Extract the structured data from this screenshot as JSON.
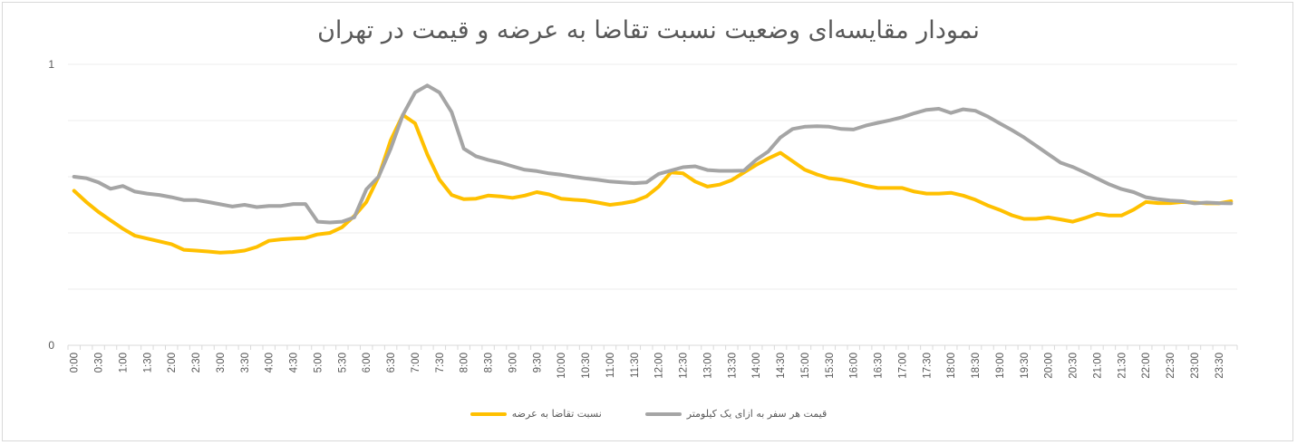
{
  "chart_data": {
    "type": "line",
    "title": "نمودار مقایسه‌ای وضعیت نسبت تقاضا به عرضه و قیمت در تهران",
    "xlabel": "",
    "ylabel": "",
    "ylim": [
      0,
      1
    ],
    "yticks": [
      0,
      1
    ],
    "ytick_labels": [
      "0",
      "1"
    ],
    "gridlines_y": [
      0,
      0.2,
      0.4,
      0.6,
      0.8,
      1
    ],
    "grid": true,
    "legend_position": "bottom",
    "x_label_every": 2,
    "x": [
      "0:00",
      "0:15",
      "0:30",
      "0:45",
      "1:00",
      "1:15",
      "1:30",
      "1:45",
      "2:00",
      "2:15",
      "2:30",
      "2:45",
      "3:00",
      "3:15",
      "3:30",
      "3:45",
      "4:00",
      "4:15",
      "4:30",
      "4:45",
      "5:00",
      "5:15",
      "5:30",
      "5:45",
      "6:00",
      "6:15",
      "6:30",
      "6:45",
      "7:00",
      "7:15",
      "7:30",
      "7:45",
      "8:00",
      "8:15",
      "8:30",
      "8:45",
      "9:00",
      "9:15",
      "9:30",
      "9:45",
      "10:00",
      "10:15",
      "10:30",
      "10:45",
      "11:00",
      "11:15",
      "11:30",
      "11:45",
      "12:00",
      "12:15",
      "12:30",
      "12:45",
      "13:00",
      "13:15",
      "13:30",
      "13:45",
      "14:00",
      "14:15",
      "14:30",
      "14:45",
      "15:00",
      "15:15",
      "15:30",
      "15:45",
      "16:00",
      "16:15",
      "16:30",
      "16:45",
      "17:00",
      "17:15",
      "17:30",
      "17:45",
      "18:00",
      "18:15",
      "18:30",
      "18:45",
      "19:00",
      "19:15",
      "19:30",
      "19:45",
      "20:00",
      "20:15",
      "20:30",
      "20:45",
      "21:00",
      "21:15",
      "21:30",
      "21:45",
      "22:00",
      "22:15",
      "22:30",
      "22:45",
      "23:00",
      "23:15",
      "23:30",
      "23:45"
    ],
    "series": [
      {
        "name": "نسبت تقاضا به عرضه",
        "color": "#FFC000",
        "values": [
          0.55,
          0.51,
          0.475,
          0.445,
          0.415,
          0.39,
          0.38,
          0.37,
          0.36,
          0.34,
          0.337,
          0.334,
          0.33,
          0.332,
          0.337,
          0.35,
          0.372,
          0.377,
          0.38,
          0.382,
          0.395,
          0.4,
          0.42,
          0.46,
          0.51,
          0.6,
          0.73,
          0.82,
          0.79,
          0.68,
          0.59,
          0.535,
          0.52,
          0.522,
          0.533,
          0.53,
          0.525,
          0.533,
          0.545,
          0.537,
          0.522,
          0.518,
          0.515,
          0.508,
          0.5,
          0.505,
          0.513,
          0.53,
          0.565,
          0.615,
          0.612,
          0.583,
          0.565,
          0.572,
          0.588,
          0.615,
          0.642,
          0.665,
          0.685,
          0.655,
          0.625,
          0.608,
          0.595,
          0.59,
          0.58,
          0.568,
          0.56,
          0.56,
          0.56,
          0.547,
          0.54,
          0.54,
          0.543,
          0.533,
          0.518,
          0.498,
          0.482,
          0.463,
          0.45,
          0.45,
          0.455,
          0.448,
          0.44,
          0.453,
          0.468,
          0.462,
          0.462,
          0.483,
          0.51,
          0.506,
          0.506,
          0.51,
          0.508,
          0.505,
          0.505,
          0.513
        ]
      },
      {
        "name": "قیمت هر سفر به ازای یک کیلومتر",
        "color": "#A5A5A5",
        "values": [
          0.6,
          0.595,
          0.58,
          0.557,
          0.567,
          0.547,
          0.54,
          0.535,
          0.527,
          0.517,
          0.517,
          0.51,
          0.502,
          0.494,
          0.5,
          0.492,
          0.496,
          0.496,
          0.503,
          0.503,
          0.44,
          0.437,
          0.44,
          0.455,
          0.555,
          0.6,
          0.7,
          0.82,
          0.9,
          0.925,
          0.9,
          0.83,
          0.7,
          0.673,
          0.66,
          0.65,
          0.637,
          0.625,
          0.62,
          0.612,
          0.607,
          0.6,
          0.594,
          0.589,
          0.583,
          0.58,
          0.577,
          0.58,
          0.61,
          0.622,
          0.634,
          0.637,
          0.624,
          0.621,
          0.621,
          0.622,
          0.66,
          0.69,
          0.74,
          0.77,
          0.778,
          0.78,
          0.778,
          0.77,
          0.768,
          0.782,
          0.792,
          0.801,
          0.812,
          0.826,
          0.838,
          0.842,
          0.827,
          0.84,
          0.835,
          0.815,
          0.79,
          0.766,
          0.74,
          0.71,
          0.68,
          0.65,
          0.635,
          0.615,
          0.594,
          0.573,
          0.556,
          0.545,
          0.527,
          0.52,
          0.515,
          0.513,
          0.505,
          0.508,
          0.506,
          0.505
        ]
      }
    ]
  },
  "legend": {
    "items": [
      {
        "label": "قیمت هر سفر به ازای یک کیلومتر",
        "color": "#A5A5A5"
      },
      {
        "label": "نسبت تقاضا به عرضه",
        "color": "#FFC000"
      }
    ]
  }
}
